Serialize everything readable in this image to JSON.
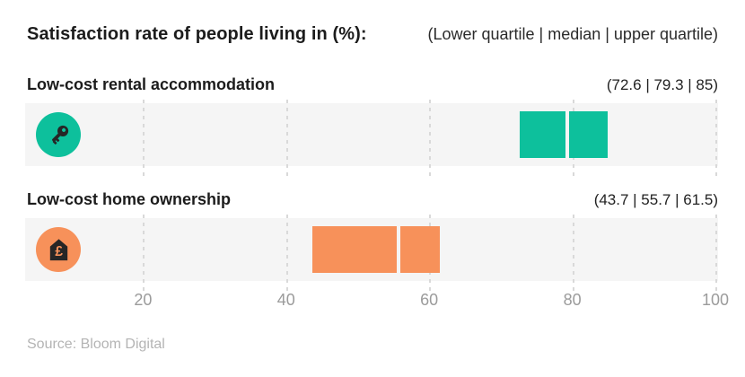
{
  "header": {
    "title": "Satisfaction rate of people living in (%):",
    "subtitle": "(Lower quartile | median | upper quartile)"
  },
  "footer": {
    "source": "Source: Bloom Digital"
  },
  "colors": {
    "teal": "#0dc09c",
    "orange": "#f7915a",
    "band_background": "#f5f5f5",
    "gridline": "#d9d9d9",
    "icon_glyph": "#262626",
    "axis_text": "#9b9b9b"
  },
  "chart_data": {
    "type": "bar",
    "subtype": "quartile-range-box",
    "title": "Satisfaction rate of people living in (%)",
    "legend_note": "(Lower quartile | median | upper quartile)",
    "axis": {
      "min": 0,
      "max": 100,
      "ticks": [
        20,
        40,
        60,
        80,
        100
      ],
      "orientation": "horizontal"
    },
    "rows": [
      {
        "label": "Low-cost rental accommodation",
        "values_label": "(72.6 | 79.3 | 85)",
        "lower_quartile": 72.6,
        "median": 79.3,
        "upper_quartile": 85,
        "color": "#0dc09c",
        "icon": "key-icon"
      },
      {
        "label": "Low-cost home ownership",
        "values_label": "(43.7 | 55.7 | 61.5)",
        "lower_quartile": 43.7,
        "median": 55.7,
        "upper_quartile": 61.5,
        "color": "#f7915a",
        "icon": "house-pound-icon"
      }
    ]
  }
}
